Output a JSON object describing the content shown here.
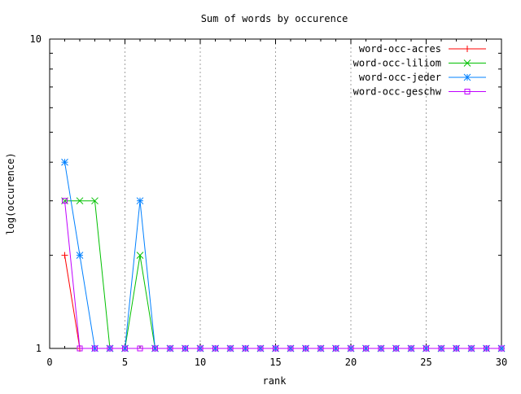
{
  "chart_data": {
    "type": "line",
    "title": "Sum of words by occurence",
    "xlabel": "rank",
    "ylabel": "log(occurence)",
    "xlim": [
      0,
      30
    ],
    "ylim": [
      1,
      10
    ],
    "yscale": "log",
    "x_ticks": [
      0,
      5,
      10,
      15,
      20,
      25,
      30
    ],
    "x_tick_labels": [
      "0",
      "5",
      "10",
      "15",
      "20",
      "25",
      "30"
    ],
    "y_tick_labels": [
      "1",
      "10"
    ],
    "x_grid": true,
    "legend_position": "top-right",
    "series": [
      {
        "name": "word-occ-acres",
        "color": "#ff0000",
        "marker": "plus",
        "points": [
          [
            1,
            2
          ],
          [
            2,
            1
          ]
        ]
      },
      {
        "name": "word-occ-liliom",
        "color": "#00c000",
        "marker": "cross",
        "points": [
          [
            1,
            3
          ],
          [
            2,
            3
          ],
          [
            3,
            3
          ],
          [
            4,
            1
          ],
          [
            5,
            1
          ],
          [
            6,
            2
          ],
          [
            7,
            1
          ],
          [
            8,
            1
          ],
          [
            9,
            1
          ],
          [
            10,
            1
          ],
          [
            11,
            1
          ],
          [
            12,
            1
          ],
          [
            13,
            1
          ],
          [
            14,
            1
          ],
          [
            15,
            1
          ],
          [
            16,
            1
          ],
          [
            17,
            1
          ],
          [
            18,
            1
          ],
          [
            19,
            1
          ],
          [
            20,
            1
          ],
          [
            21,
            1
          ],
          [
            22,
            1
          ],
          [
            23,
            1
          ],
          [
            24,
            1
          ],
          [
            25,
            1
          ],
          [
            26,
            1
          ],
          [
            27,
            1
          ],
          [
            28,
            1
          ],
          [
            29,
            1
          ],
          [
            30,
            1
          ]
        ]
      },
      {
        "name": "word-occ-jeder",
        "color": "#0080ff",
        "marker": "star",
        "points": [
          [
            1,
            4
          ],
          [
            2,
            2
          ],
          [
            3,
            1
          ],
          [
            4,
            1
          ],
          [
            5,
            1
          ],
          [
            6,
            3
          ],
          [
            7,
            1
          ],
          [
            8,
            1
          ],
          [
            9,
            1
          ],
          [
            10,
            1
          ],
          [
            11,
            1
          ],
          [
            12,
            1
          ],
          [
            13,
            1
          ],
          [
            14,
            1
          ],
          [
            15,
            1
          ],
          [
            16,
            1
          ],
          [
            17,
            1
          ],
          [
            18,
            1
          ],
          [
            19,
            1
          ],
          [
            20,
            1
          ],
          [
            21,
            1
          ],
          [
            22,
            1
          ],
          [
            23,
            1
          ],
          [
            24,
            1
          ],
          [
            25,
            1
          ],
          [
            26,
            1
          ],
          [
            27,
            1
          ],
          [
            28,
            1
          ],
          [
            29,
            1
          ],
          [
            30,
            1
          ]
        ]
      },
      {
        "name": "word-occ-geschw",
        "color": "#c000ff",
        "marker": "square",
        "points": [
          [
            1,
            3
          ],
          [
            2,
            1
          ],
          [
            3,
            1
          ],
          [
            4,
            1
          ],
          [
            5,
            1
          ],
          [
            6,
            1
          ],
          [
            7,
            1
          ],
          [
            8,
            1
          ],
          [
            9,
            1
          ],
          [
            10,
            1
          ],
          [
            11,
            1
          ],
          [
            12,
            1
          ],
          [
            13,
            1
          ],
          [
            14,
            1
          ],
          [
            15,
            1
          ],
          [
            16,
            1
          ],
          [
            17,
            1
          ],
          [
            18,
            1
          ],
          [
            19,
            1
          ],
          [
            20,
            1
          ],
          [
            21,
            1
          ],
          [
            22,
            1
          ],
          [
            23,
            1
          ],
          [
            24,
            1
          ],
          [
            25,
            1
          ],
          [
            26,
            1
          ],
          [
            27,
            1
          ],
          [
            28,
            1
          ],
          [
            29,
            1
          ],
          [
            30,
            1
          ]
        ]
      }
    ]
  }
}
